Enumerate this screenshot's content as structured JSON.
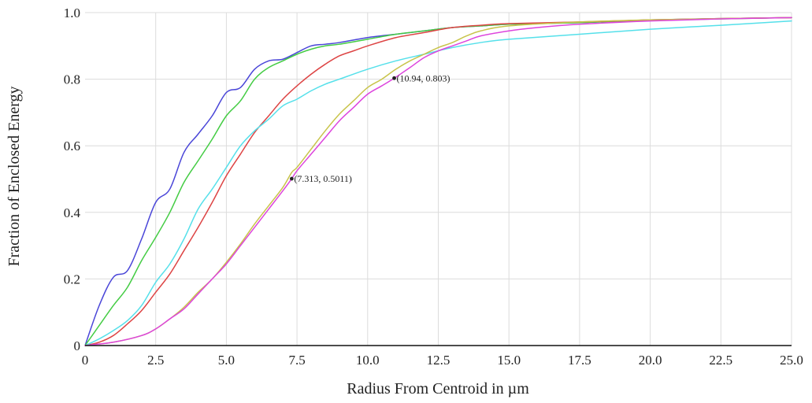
{
  "chart_data": {
    "type": "line",
    "title": "",
    "xlabel": "Radius From Centroid in µm",
    "ylabel": "Fraction of Enclosed Energy",
    "xlim": [
      0,
      25
    ],
    "ylim": [
      0,
      1
    ],
    "grid": true,
    "legend": "none",
    "x_ticks": [
      "0",
      "2.5",
      "5.0",
      "7.5",
      "10.0",
      "12.5",
      "15.0",
      "17.5",
      "20.0",
      "22.5",
      "25.0"
    ],
    "y_ticks": [
      "0",
      "0.2",
      "0.4",
      "0.6",
      "0.8",
      "1.0"
    ],
    "series": [
      {
        "color": "#4a46d8",
        "x": [
          0,
          0.5,
          1.0,
          1.5,
          2.0,
          2.5,
          3.0,
          3.5,
          4.0,
          4.5,
          5.0,
          5.5,
          6.0,
          6.5,
          7.0,
          7.5,
          8.0,
          8.5,
          9.0,
          10.0,
          11.0,
          12.0,
          13.0,
          14.0,
          15.0,
          17.5,
          20.0,
          22.5,
          25.0
        ],
        "y": [
          0.0,
          0.12,
          0.205,
          0.225,
          0.32,
          0.43,
          0.47,
          0.58,
          0.635,
          0.69,
          0.76,
          0.775,
          0.83,
          0.855,
          0.86,
          0.88,
          0.9,
          0.905,
          0.91,
          0.925,
          0.935,
          0.945,
          0.955,
          0.96,
          0.965,
          0.97,
          0.978,
          0.982,
          0.985
        ]
      },
      {
        "color": "#44cc44",
        "x": [
          0,
          0.5,
          1.0,
          1.5,
          2.0,
          2.5,
          3.0,
          3.5,
          4.0,
          4.5,
          5.0,
          5.5,
          6.0,
          6.5,
          7.0,
          7.5,
          8.0,
          8.5,
          9.0,
          10.0,
          11.0,
          12.0,
          13.0,
          14.0,
          15.0,
          17.5,
          20.0,
          22.5,
          25.0
        ],
        "y": [
          0.0,
          0.06,
          0.12,
          0.175,
          0.255,
          0.325,
          0.4,
          0.49,
          0.555,
          0.62,
          0.69,
          0.735,
          0.8,
          0.835,
          0.855,
          0.875,
          0.89,
          0.9,
          0.905,
          0.92,
          0.935,
          0.945,
          0.955,
          0.96,
          0.965,
          0.97,
          0.977,
          0.981,
          0.985
        ]
      },
      {
        "color": "#dd4444",
        "x": [
          0,
          0.5,
          1.0,
          1.5,
          2.0,
          2.5,
          3.0,
          3.5,
          4.0,
          4.5,
          5.0,
          5.5,
          6.0,
          6.5,
          7.0,
          7.5,
          8.0,
          8.5,
          9.0,
          9.5,
          10.0,
          11.0,
          12.0,
          13.0,
          14.0,
          15.0,
          17.5,
          20.0,
          22.5,
          25.0
        ],
        "y": [
          0.0,
          0.01,
          0.03,
          0.065,
          0.105,
          0.16,
          0.215,
          0.285,
          0.355,
          0.43,
          0.51,
          0.575,
          0.64,
          0.69,
          0.74,
          0.78,
          0.815,
          0.845,
          0.87,
          0.885,
          0.9,
          0.925,
          0.94,
          0.955,
          0.962,
          0.967,
          0.972,
          0.978,
          0.982,
          0.985
        ]
      },
      {
        "color": "#55e0ea",
        "x": [
          0,
          0.5,
          1.0,
          1.5,
          2.0,
          2.5,
          3.0,
          3.5,
          4.0,
          4.5,
          5.0,
          5.5,
          6.0,
          6.5,
          7.0,
          7.5,
          8.0,
          8.5,
          9.0,
          10.0,
          11.0,
          12.0,
          13.0,
          14.0,
          15.0,
          17.5,
          20.0,
          22.5,
          25.0
        ],
        "y": [
          0.0,
          0.02,
          0.045,
          0.075,
          0.12,
          0.19,
          0.245,
          0.32,
          0.41,
          0.47,
          0.535,
          0.6,
          0.645,
          0.68,
          0.72,
          0.74,
          0.765,
          0.785,
          0.8,
          0.83,
          0.855,
          0.875,
          0.895,
          0.91,
          0.92,
          0.935,
          0.95,
          0.962,
          0.975
        ]
      },
      {
        "color": "#c8c44a",
        "x": [
          0,
          1.0,
          2.0,
          2.5,
          3.0,
          3.5,
          4.0,
          4.5,
          5.0,
          5.5,
          6.0,
          6.5,
          7.0,
          7.313,
          7.5,
          8.0,
          8.5,
          9.0,
          9.5,
          10.0,
          10.5,
          11.0,
          11.5,
          12.0,
          12.5,
          13.0,
          13.5,
          14.0,
          15.0,
          17.5,
          20.0,
          22.5,
          25.0
        ],
        "y": [
          0.0,
          0.01,
          0.03,
          0.05,
          0.08,
          0.115,
          0.16,
          0.2,
          0.25,
          0.305,
          0.365,
          0.42,
          0.475,
          0.52,
          0.535,
          0.59,
          0.645,
          0.695,
          0.735,
          0.775,
          0.8,
          0.83,
          0.855,
          0.875,
          0.895,
          0.91,
          0.93,
          0.945,
          0.96,
          0.972,
          0.978,
          0.982,
          0.985
        ]
      },
      {
        "color": "#dd44dd",
        "x": [
          0,
          1.0,
          2.0,
          2.5,
          3.0,
          3.5,
          4.0,
          4.5,
          5.0,
          5.5,
          6.0,
          6.5,
          7.0,
          7.313,
          7.5,
          8.0,
          8.5,
          9.0,
          9.5,
          10.0,
          10.5,
          10.94,
          11.5,
          12.0,
          12.5,
          13.0,
          13.5,
          14.0,
          15.0,
          16.0,
          17.5,
          20.0,
          22.5,
          25.0
        ],
        "y": [
          0.0,
          0.01,
          0.03,
          0.05,
          0.08,
          0.11,
          0.155,
          0.2,
          0.245,
          0.3,
          0.355,
          0.41,
          0.465,
          0.5011,
          0.525,
          0.575,
          0.625,
          0.675,
          0.715,
          0.755,
          0.78,
          0.803,
          0.835,
          0.865,
          0.885,
          0.9,
          0.915,
          0.93,
          0.945,
          0.955,
          0.965,
          0.975,
          0.981,
          0.985
        ]
      }
    ],
    "annotations": [
      {
        "x": 7.313,
        "y": 0.5011,
        "text": "(7.313, 0.5011)"
      },
      {
        "x": 10.94,
        "y": 0.803,
        "text": "(10.94, 0.803)"
      }
    ]
  }
}
